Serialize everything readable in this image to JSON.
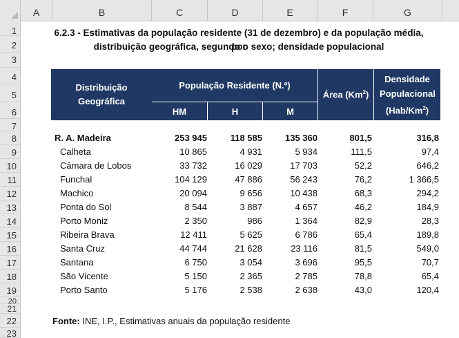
{
  "columns": [
    "A",
    "B",
    "C",
    "D",
    "E",
    "F",
    "G"
  ],
  "rows": [
    "1",
    "2",
    "3",
    "4",
    "5",
    "6",
    "7",
    "8",
    "9",
    "10",
    "11",
    "12",
    "13",
    "14",
    "15",
    "16",
    "17",
    "18",
    "19",
    "20",
    "21",
    "22",
    "23"
  ],
  "title_line1": "6.2.3 - Estimativas da população residente (31 de dezembro) e da população média, por",
  "title_line2": "distribuição geográfica, segundo o sexo; densidade populacional",
  "header": {
    "distribuicao": "Distribuição Geográfica",
    "populacao": "População Residente (N.º)",
    "hm": "HM",
    "h": "H",
    "m": "M",
    "area": "Área (Km",
    "area_sup": "2",
    "area_close": ")",
    "densidade1": "Densidade Populacional",
    "densidade2": "(Hab/Km",
    "densidade_sup": "2",
    "densidade_close": ")"
  },
  "data_rows": [
    {
      "name": "R. A. Madeira",
      "hm": "253 945",
      "h": "118 585",
      "m": "135 360",
      "area": "801,5",
      "dens": "316,8",
      "bold": true
    },
    {
      "name": "Calheta",
      "hm": "10 865",
      "h": "4 931",
      "m": "5 934",
      "area": "111,5",
      "dens": "97,4"
    },
    {
      "name": "Câmara de Lobos",
      "hm": "33 732",
      "h": "16 029",
      "m": "17 703",
      "area": "52,2",
      "dens": "646,2"
    },
    {
      "name": "Funchal",
      "hm": "104 129",
      "h": "47 886",
      "m": "56 243",
      "area": "76,2",
      "dens": "1 366,5"
    },
    {
      "name": "Machico",
      "hm": "20 094",
      "h": "9 656",
      "m": "10 438",
      "area": "68,3",
      "dens": "294,2"
    },
    {
      "name": "Ponta do Sol",
      "hm": "8 544",
      "h": "3 887",
      "m": "4 657",
      "area": "46,2",
      "dens": "184,9"
    },
    {
      "name": "Porto Moniz",
      "hm": "2 350",
      "h": "986",
      "m": "1 364",
      "area": "82,9",
      "dens": "28,3"
    },
    {
      "name": "Ribeira Brava",
      "hm": "12 411",
      "h": "5 625",
      "m": "6 786",
      "area": "65,4",
      "dens": "189,8"
    },
    {
      "name": "Santa Cruz",
      "hm": "44 744",
      "h": "21 628",
      "m": "23 116",
      "area": "81,5",
      "dens": "549,0"
    },
    {
      "name": "Santana",
      "hm": "6 750",
      "h": "3 054",
      "m": "3 696",
      "area": "95,5",
      "dens": "70,7"
    },
    {
      "name": "São Vicente",
      "hm": "5 150",
      "h": "2 365",
      "m": "2 785",
      "area": "78,8",
      "dens": "65,4"
    },
    {
      "name": "Porto Santo",
      "hm": "5 176",
      "h": "2 538",
      "m": "2 638",
      "area": "43,0",
      "dens": "120,4"
    }
  ],
  "source_label": "Fonte:",
  "source_text": " INE, I.P., Estimativas anuais da população residente",
  "colors": {
    "header_bg": "#1f3864",
    "grid_header": "#e6e6e6"
  }
}
